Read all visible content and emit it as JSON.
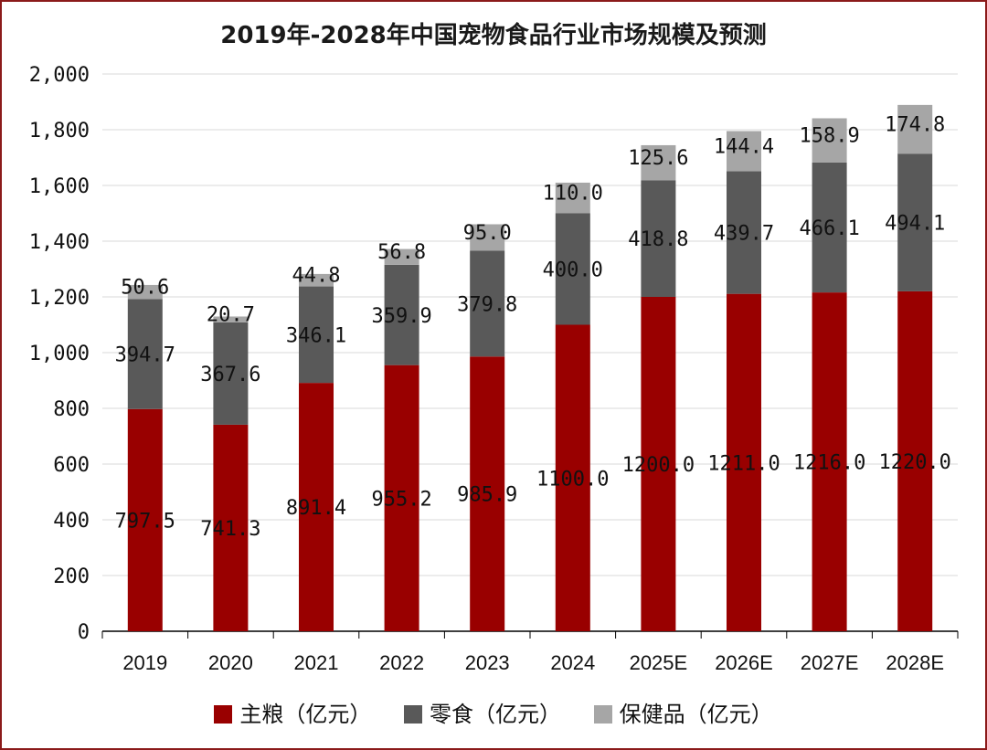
{
  "chart_data": {
    "type": "bar",
    "stacked": true,
    "title": "2019年-2028年中国宠物食品行业市场规模及预测",
    "xlabel": "",
    "ylabel": "",
    "ylim": [
      0,
      2000
    ],
    "yticks": [
      0,
      200,
      400,
      600,
      800,
      1000,
      1200,
      1400,
      1600,
      1800,
      2000
    ],
    "ytick_labels": [
      "0",
      "200",
      "400",
      "600",
      "800",
      "1,000",
      "1,200",
      "1,400",
      "1,600",
      "1,800",
      "2,000"
    ],
    "categories": [
      "2019",
      "2020",
      "2021",
      "2022",
      "2023",
      "2024",
      "2025E",
      "2026E",
      "2027E",
      "2028E"
    ],
    "grid": true,
    "legend_position": "bottom",
    "series": [
      {
        "name": "主粮（亿元）",
        "color": "#990000",
        "values": [
          797.5,
          741.3,
          891.4,
          955.2,
          985.9,
          1100.0,
          1200.0,
          1211.0,
          1216.0,
          1220.0
        ],
        "labels": [
          "797.5",
          "741.3",
          "891.4",
          "955.2",
          "985.9",
          "1100.0",
          "1200.0",
          "1211.0",
          "1216.0",
          "1220.0"
        ]
      },
      {
        "name": "零食（亿元）",
        "color": "#595959",
        "values": [
          394.7,
          367.6,
          346.1,
          359.9,
          379.8,
          400.0,
          418.8,
          439.7,
          466.1,
          494.1
        ],
        "labels": [
          "394.7",
          "367.6",
          "346.1",
          "359.9",
          "379.8",
          "400.0",
          "418.8",
          "439.7",
          "466.1",
          "494.1"
        ]
      },
      {
        "name": "保健品（亿元）",
        "color": "#a6a6a6",
        "values": [
          50.6,
          20.7,
          44.8,
          56.8,
          95.0,
          110.0,
          125.6,
          144.4,
          158.9,
          174.8
        ],
        "labels": [
          "50.6",
          "20.7",
          "44.8",
          "56.8",
          "95.0",
          "110.0",
          "125.6",
          "144.4",
          "158.9",
          "174.8"
        ]
      }
    ]
  }
}
